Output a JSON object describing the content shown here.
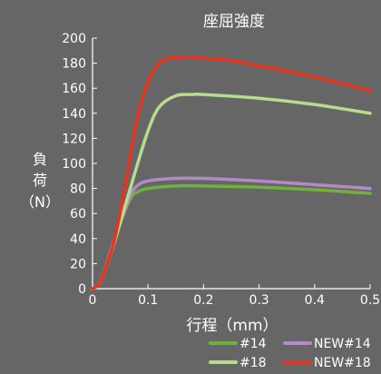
{
  "chart_data": {
    "type": "line",
    "title": "座屈強度",
    "xlabel": "行程（mm）",
    "ylabel_chars": [
      "負",
      "荷",
      "（N）"
    ],
    "xlim": [
      0,
      0.5
    ],
    "ylim": [
      0,
      200
    ],
    "x_ticks": [
      0,
      0.1,
      0.2,
      0.3,
      0.4,
      0.5
    ],
    "x_tick_labels": [
      "0",
      "0.1",
      "0.2",
      "0.3",
      "0.4",
      "0.5"
    ],
    "y_ticks": [
      0,
      20,
      40,
      60,
      80,
      100,
      120,
      140,
      160,
      180,
      200
    ],
    "y_tick_labels": [
      "0",
      "20",
      "40",
      "60",
      "80",
      "100",
      "120",
      "140",
      "160",
      "180",
      "200"
    ],
    "grid": false,
    "legend_position": "bottom-right",
    "background_color": "#666666",
    "series": [
      {
        "name": "#14",
        "color": "#6fb13a",
        "points": [
          [
            0.0,
            0
          ],
          [
            0.01,
            3
          ],
          [
            0.02,
            12
          ],
          [
            0.04,
            40
          ],
          [
            0.06,
            64
          ],
          [
            0.07,
            73
          ],
          [
            0.08,
            77
          ],
          [
            0.1,
            80
          ],
          [
            0.15,
            82
          ],
          [
            0.2,
            82
          ],
          [
            0.3,
            81
          ],
          [
            0.4,
            79
          ],
          [
            0.5,
            76
          ]
        ]
      },
      {
        "name": "NEW#14",
        "color": "#b48ac6",
        "points": [
          [
            0.0,
            0
          ],
          [
            0.01,
            3
          ],
          [
            0.02,
            12
          ],
          [
            0.04,
            40
          ],
          [
            0.06,
            65
          ],
          [
            0.07,
            76
          ],
          [
            0.08,
            82
          ],
          [
            0.1,
            86
          ],
          [
            0.15,
            88
          ],
          [
            0.2,
            88
          ],
          [
            0.3,
            86
          ],
          [
            0.4,
            83
          ],
          [
            0.5,
            80
          ]
        ]
      },
      {
        "name": "#18",
        "color": "#b7dc8f",
        "points": [
          [
            0.0,
            0
          ],
          [
            0.01,
            3
          ],
          [
            0.02,
            12
          ],
          [
            0.04,
            38
          ],
          [
            0.06,
            68
          ],
          [
            0.08,
            98
          ],
          [
            0.1,
            126
          ],
          [
            0.12,
            145
          ],
          [
            0.15,
            154
          ],
          [
            0.18,
            155
          ],
          [
            0.2,
            155
          ],
          [
            0.3,
            152
          ],
          [
            0.4,
            147
          ],
          [
            0.5,
            140
          ]
        ]
      },
      {
        "name": "NEW#18",
        "color": "#e8331f",
        "points": [
          [
            0.0,
            0
          ],
          [
            0.01,
            3
          ],
          [
            0.02,
            12
          ],
          [
            0.04,
            40
          ],
          [
            0.06,
            85
          ],
          [
            0.08,
            135
          ],
          [
            0.1,
            165
          ],
          [
            0.12,
            180
          ],
          [
            0.14,
            184
          ],
          [
            0.17,
            185
          ],
          [
            0.2,
            184
          ],
          [
            0.25,
            182
          ],
          [
            0.3,
            178
          ],
          [
            0.4,
            169
          ],
          [
            0.5,
            158
          ]
        ]
      }
    ]
  }
}
